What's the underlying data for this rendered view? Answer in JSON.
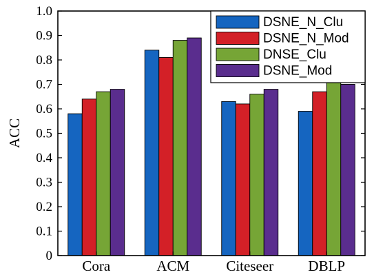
{
  "chart_data": {
    "type": "bar",
    "title": "",
    "xlabel": "",
    "ylabel": "ACC",
    "ylim": [
      0,
      1.0
    ],
    "yticks": [
      "0",
      "0.1",
      "0.2",
      "0.3",
      "0.4",
      "0.5",
      "0.6",
      "0.7",
      "0.8",
      "0.9",
      "1.0"
    ],
    "categories": [
      "Cora",
      "ACM",
      "Citeseer",
      "DBLP"
    ],
    "legend_position": "top-right",
    "series": [
      {
        "name": "DSNE_N_Clu",
        "color": "#1565C0",
        "values": [
          0.58,
          0.84,
          0.63,
          0.59
        ]
      },
      {
        "name": "DSNE_N_Mod",
        "color": "#D32027",
        "values": [
          0.64,
          0.81,
          0.62,
          0.67
        ]
      },
      {
        "name": "DNSE_Clu",
        "color": "#76A536",
        "values": [
          0.67,
          0.88,
          0.66,
          0.72
        ]
      },
      {
        "name": "DSNE_Mod",
        "color": "#5A2D8E",
        "values": [
          0.68,
          0.89,
          0.68,
          0.7
        ]
      }
    ]
  }
}
